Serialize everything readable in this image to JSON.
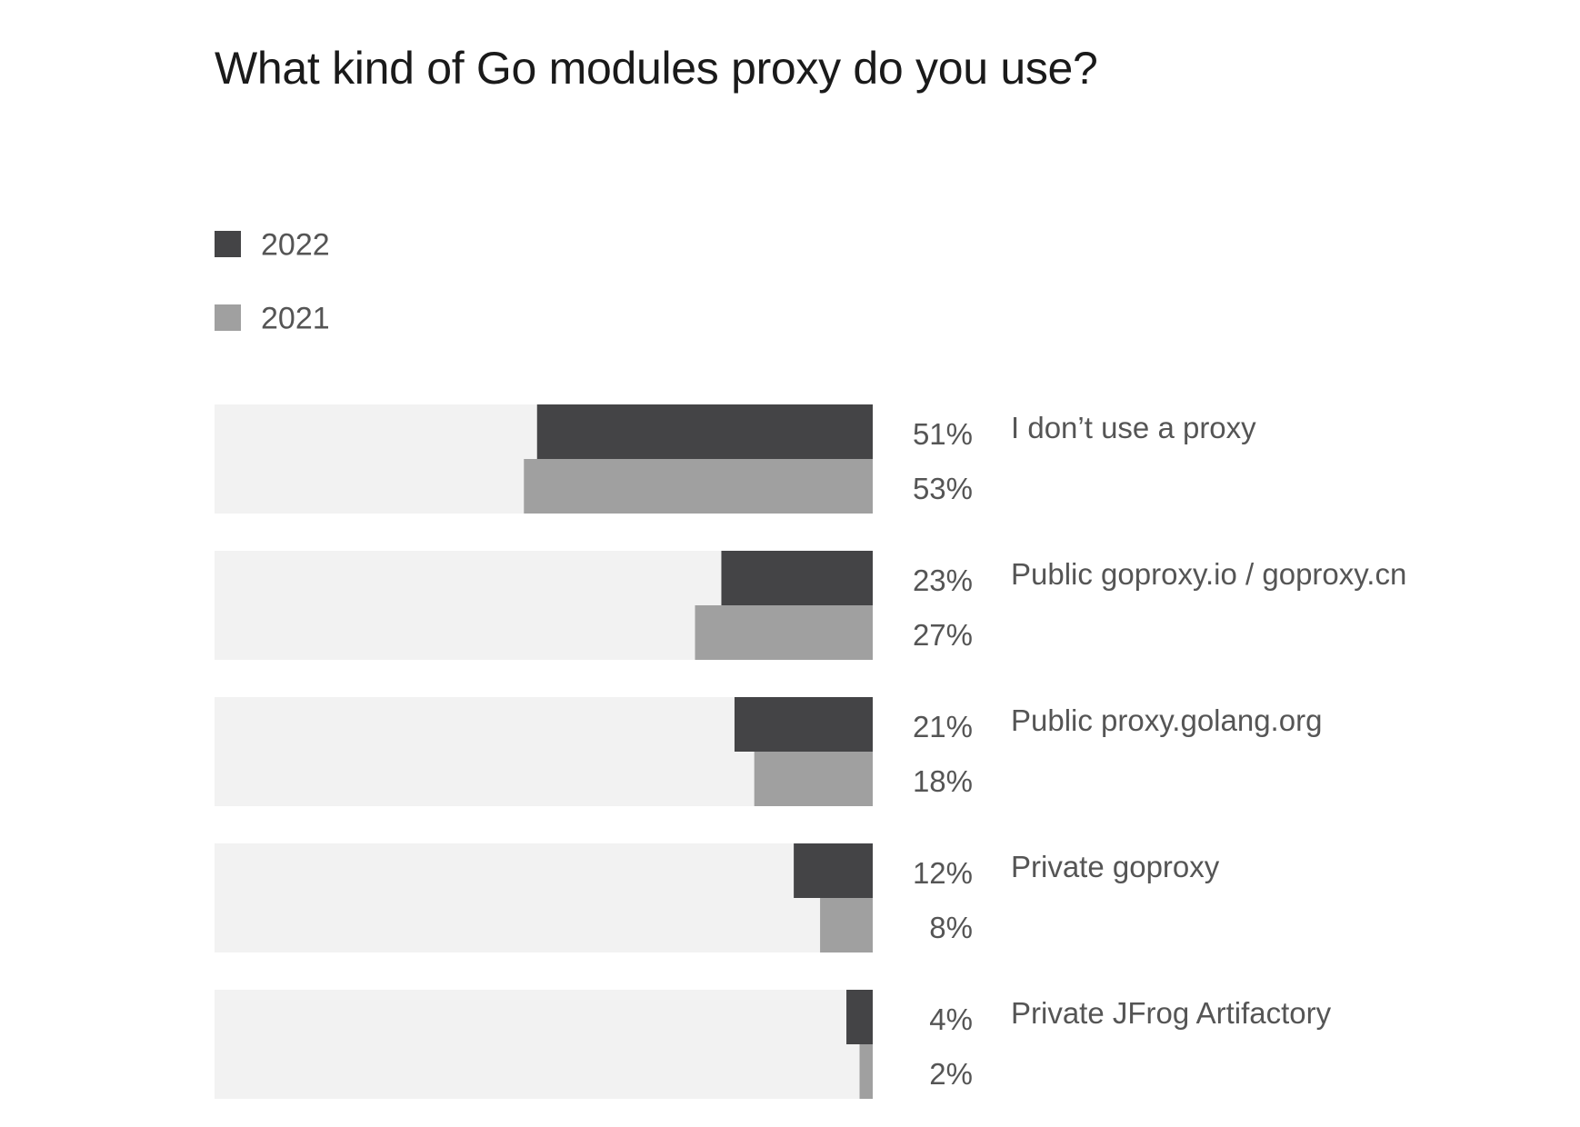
{
  "chart_data": {
    "type": "bar",
    "orientation": "horizontal",
    "title": "What kind of Go modules proxy do you use?",
    "categories": [
      "I don’t use a proxy",
      "Public goproxy.io / goproxy.cn",
      "Public proxy.golang.org",
      "Private goproxy",
      "Private JFrog Artifactory"
    ],
    "series": [
      {
        "name": "2022",
        "color": "#444446",
        "values": [
          51,
          23,
          21,
          12,
          4
        ],
        "labels": [
          "51%",
          "23%",
          "21%",
          "12%",
          "4%"
        ]
      },
      {
        "name": "2021",
        "color": "#a0a0a0",
        "values": [
          53,
          27,
          18,
          8,
          2
        ],
        "labels": [
          "53%",
          "27%",
          "18%",
          "8%",
          "2%"
        ]
      }
    ],
    "value_unit": "%",
    "xlim": [
      0,
      100
    ],
    "bars_anchored": "right",
    "track_color": "#f2f2f2",
    "label_color": "#555555",
    "legend_position": "top-left",
    "grid": false
  }
}
